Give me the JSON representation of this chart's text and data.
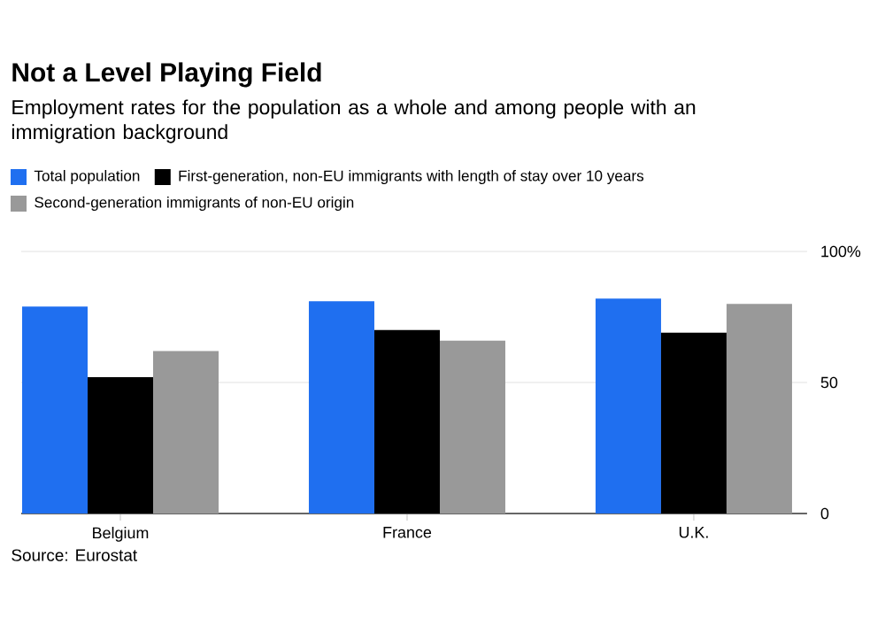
{
  "chart_data": {
    "type": "bar",
    "title": "Not a Level Playing Field",
    "subtitle": "Employment rates for the population as a whole and among people with an immigration background",
    "categories": [
      "Belgium",
      "France",
      "U.K."
    ],
    "series": [
      {
        "name": "Total population",
        "color": "#1f6ff0",
        "values": [
          79,
          81,
          82
        ]
      },
      {
        "name": "First-generation, non-EU immigrants with length of stay over 10 years",
        "color": "#000000",
        "values": [
          52,
          70,
          69
        ]
      },
      {
        "name": "Second-generation immigrants of non-EU origin",
        "color": "#999999",
        "values": [
          62,
          66,
          80
        ]
      }
    ],
    "ylim": [
      0,
      100
    ],
    "yticks": [
      0,
      50,
      {
        "value": 100,
        "label": "100%"
      }
    ],
    "grid": "y",
    "legend": "top",
    "annotations": [
      "Source: Eurostat"
    ]
  }
}
